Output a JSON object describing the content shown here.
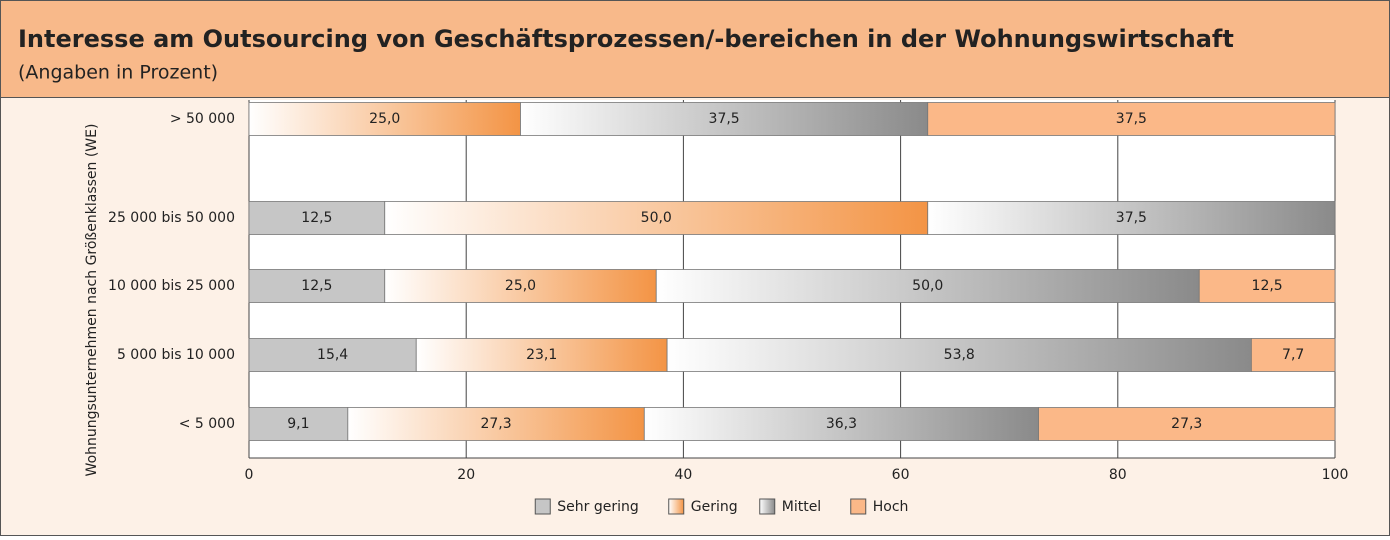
{
  "chart_data": {
    "type": "stacked-barh",
    "title": "Interesse am Outsourcing von Geschäftsprozessen/-bereichen in der Wohnungswirtschaft",
    "subtitle": "(Angaben in Prozent)",
    "ylabel": "Wohnungsunternehmen nach Größenklassen (WE)",
    "categories": [
      "> 50 000",
      "25 000 bis 50 000",
      "10 000 bis 25 000",
      "5 000 bis 10 000",
      "< 5 000"
    ],
    "series": [
      {
        "name": "Sehr gering",
        "color": "#c6c6c6",
        "fill": "solid",
        "values": [
          null,
          12.5,
          12.5,
          15.4,
          9.1
        ],
        "value_labels": [
          null,
          "12,5",
          "12,5",
          "15,4",
          "9,1"
        ]
      },
      {
        "name": "Gering",
        "color": "#f39445",
        "fill": "gradient",
        "values": [
          25.0,
          50.0,
          25.0,
          23.1,
          27.3
        ],
        "value_labels": [
          "25,0",
          "50,0",
          "25,0",
          "23,1",
          "27,3"
        ]
      },
      {
        "name": "Mittel",
        "color": "#8a8a8a",
        "fill": "gradient",
        "values": [
          37.5,
          37.5,
          50.0,
          53.8,
          36.3
        ],
        "value_labels": [
          "37,5",
          "37,5",
          "50,0",
          "53,8",
          "36,3"
        ]
      },
      {
        "name": "Hoch",
        "color": "#fbb888",
        "fill": "solid",
        "values": [
          37.5,
          null,
          12.5,
          7.7,
          27.3
        ],
        "value_labels": [
          "37,5",
          null,
          "12,5",
          "7,7",
          "27,3"
        ]
      }
    ],
    "xlim": [
      0,
      100
    ],
    "xticks": [
      0,
      20,
      40,
      60,
      80,
      100
    ],
    "grid": true,
    "legend": "bottom"
  }
}
